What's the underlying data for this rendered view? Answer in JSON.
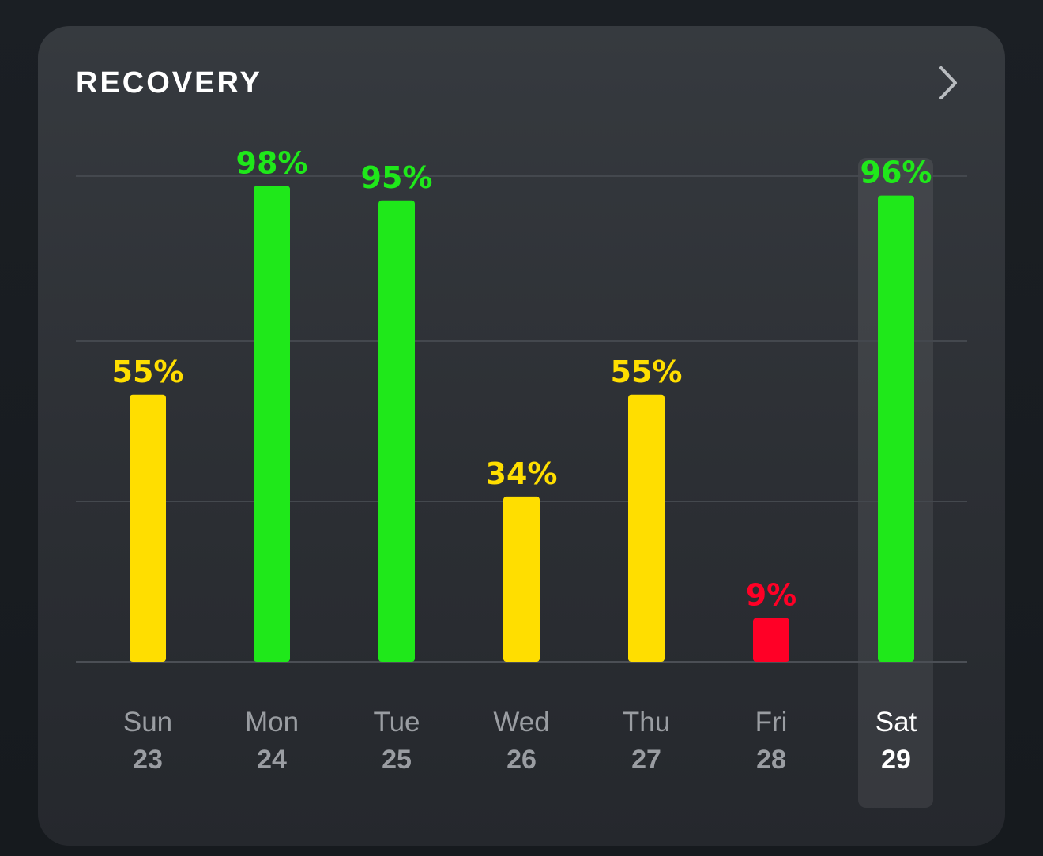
{
  "card": {
    "title": "RECOVERY",
    "chevron_icon": "chevron-right-icon"
  },
  "chart_data": {
    "type": "bar",
    "title": "RECOVERY",
    "ylim": [
      0,
      100
    ],
    "grid": true,
    "categories": [
      "Sun",
      "Mon",
      "Tue",
      "Wed",
      "Thu",
      "Fri",
      "Sat"
    ],
    "dates": [
      "23",
      "24",
      "25",
      "26",
      "27",
      "28",
      "29"
    ],
    "values": [
      55,
      98,
      95,
      34,
      55,
      9,
      96
    ],
    "labels": [
      "55%",
      "98%",
      "95%",
      "34%",
      "55%",
      "9%",
      "96%"
    ],
    "colors": [
      "#ffde00",
      "#1fe81a",
      "#1fe81a",
      "#ffde00",
      "#ffde00",
      "#ff0026",
      "#1fe81a"
    ],
    "selected_index": 6
  }
}
